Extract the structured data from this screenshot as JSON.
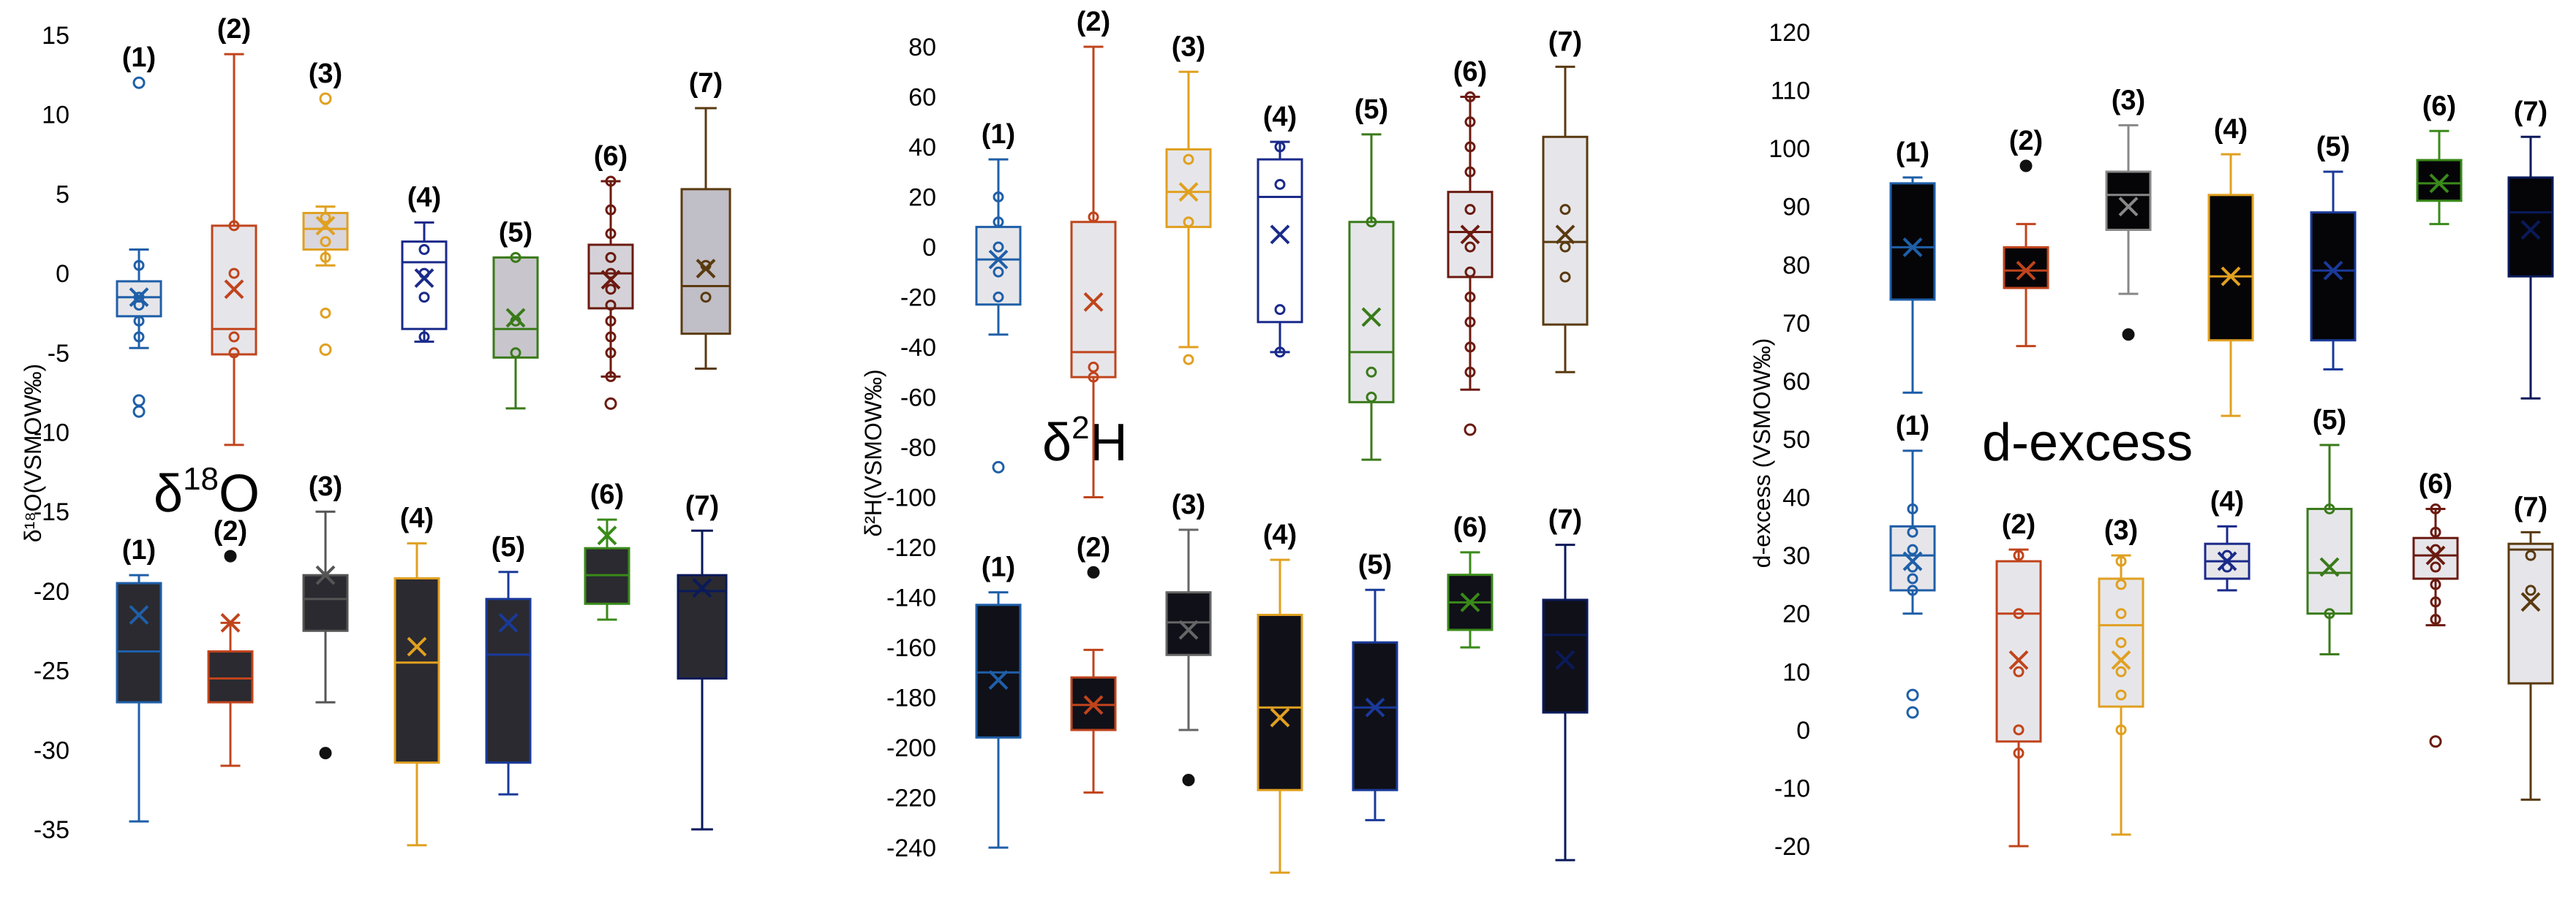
{
  "chart_data": [
    {
      "type": "box",
      "panel": "d18O",
      "title": "δ",
      "title_sup": "18",
      "title_main": "O",
      "ylabel": "δ¹⁸O(VSMOW‰)",
      "ylim": [
        -35,
        15
      ],
      "yticks": [
        15,
        10,
        5,
        0,
        -5,
        -10,
        -15,
        -20,
        -25,
        -30,
        -35
      ],
      "groups": [
        {
          "name": "upper",
          "boxes": [
            {
              "label": "(1)",
              "color": "#1f5fa8",
              "fill": "#e6e6ea",
              "min": -4.7,
              "q1": -2.7,
              "median": -1.5,
              "q3": -0.5,
              "max": 1.5,
              "mean": -1.5,
              "points": [
                -1.5,
                0.5,
                -2.0,
                -3.0,
                -4.0
              ],
              "outliers": [
                12,
                -8,
                -8.7
              ]
            },
            {
              "label": "(2)",
              "color": "#c0441c",
              "fill": "#e6e6ea",
              "min": -10.8,
              "q1": -5.1,
              "median": -3.5,
              "q3": 3.0,
              "max": 13.8,
              "mean": -1.0,
              "points": [
                3.0,
                0,
                -4,
                -5
              ],
              "outliers": []
            },
            {
              "label": "(3)",
              "color": "#e0a020",
              "fill": "#d9d6dd",
              "min": 0.5,
              "q1": 1.5,
              "median": 2.8,
              "q3": 3.8,
              "max": 4.2,
              "mean": 3.0,
              "points": [
                3.5,
                2.0,
                1.0,
                -2.5
              ],
              "outliers": [
                11,
                -4.8
              ]
            },
            {
              "label": "(4)",
              "color": "#1a2a8a",
              "fill": "#ffffff",
              "min": -4.3,
              "q1": -3.5,
              "median": 0.7,
              "q3": 2.0,
              "max": 3.2,
              "mean": -0.3,
              "points": [
                1.5,
                0,
                -1.5,
                -4
              ],
              "outliers": []
            },
            {
              "label": "(5)",
              "color": "#3a7a1a",
              "fill": "#c8c6cc",
              "min": -8.5,
              "q1": -5.3,
              "median": -3.5,
              "q3": 1.0,
              "max": 1.0,
              "mean": -2.8,
              "points": [
                1.0,
                -3.0,
                -5.0
              ],
              "outliers": []
            },
            {
              "label": "(6)",
              "color": "#6b1a10",
              "fill": "#d4d2d8",
              "min": -6.5,
              "q1": -2.2,
              "median": 0.0,
              "q3": 1.8,
              "max": 5.8,
              "mean": -0.4,
              "points": [
                5.8,
                4.0,
                2.5,
                1.0,
                0,
                -1,
                -2,
                -3,
                -4,
                -5,
                -6.5
              ],
              "outliers": [
                -8.2
              ]
            },
            {
              "label": "(7)",
              "color": "#5a3a10",
              "fill": "#c0bec6",
              "min": -6.0,
              "q1": -3.8,
              "median": -0.8,
              "q3": 5.3,
              "max": 10.4,
              "mean": 0.3,
              "points": [
                0.5,
                -1.5
              ],
              "outliers": []
            }
          ]
        },
        {
          "name": "lower",
          "boxes": [
            {
              "label": "(1)",
              "color": "#1f5fa8",
              "fill": "#2a2a30",
              "min": -34.5,
              "q1": -27.0,
              "median": -23.8,
              "q3": -19.5,
              "max": -19.0,
              "mean": -21.5,
              "points": [],
              "outliers": []
            },
            {
              "label": "(2)",
              "color": "#c0441c",
              "fill": "#2a2a30",
              "min": -31.0,
              "q1": -27.0,
              "median": -25.5,
              "q3": -23.8,
              "max": -22.0,
              "mean": -22.0,
              "points": [],
              "outliers": [
                -17.8
              ]
            },
            {
              "label": "(3)",
              "color": "#555555",
              "fill": "#2a2a30",
              "min": -27.0,
              "q1": -22.5,
              "median": -20.5,
              "q3": -19.0,
              "max": -15.0,
              "mean": -19.0,
              "points": [],
              "outliers": [
                -30.2
              ]
            },
            {
              "label": "(4)",
              "color": "#e0a020",
              "fill": "#2a2a30",
              "min": -36.0,
              "q1": -30.8,
              "median": -24.5,
              "q3": -19.2,
              "max": -17.0,
              "mean": -23.5,
              "points": [],
              "outliers": []
            },
            {
              "label": "(5)",
              "color": "#1a3a9a",
              "fill": "#2a2a30",
              "min": -32.8,
              "q1": -30.8,
              "median": -24.0,
              "q3": -20.5,
              "max": -18.8,
              "mean": -22.0,
              "points": [],
              "outliers": []
            },
            {
              "label": "(6)",
              "color": "#3a8a1a",
              "fill": "#2a2a30",
              "min": -21.8,
              "q1": -20.8,
              "median": -19.0,
              "q3": -17.3,
              "max": -15.5,
              "mean": -16.5,
              "points": [],
              "outliers": []
            },
            {
              "label": "(7)",
              "color": "#0a1a5a",
              "fill": "#2a2a30",
              "min": -35.0,
              "q1": -25.5,
              "median": -20.0,
              "q3": -19.0,
              "max": -16.2,
              "mean": -19.8,
              "points": [],
              "outliers": []
            }
          ]
        }
      ]
    },
    {
      "type": "box",
      "panel": "d2H",
      "title": "δ",
      "title_sup": "2",
      "title_main": "H",
      "ylabel": "δ²H(VSMOW‰)",
      "ylim": [
        -240,
        80
      ],
      "yticks": [
        80,
        60,
        40,
        20,
        0,
        -20,
        -40,
        -60,
        -80,
        -100,
        -120,
        -140,
        -160,
        -180,
        -200,
        -220,
        -240
      ],
      "groups": [
        {
          "name": "upper",
          "boxes": [
            {
              "label": "(1)",
              "color": "#1f5fa8",
              "fill": "#e6e6ea",
              "min": -35,
              "q1": -23,
              "median": -5,
              "q3": 8,
              "max": 35,
              "mean": -5,
              "points": [
                20,
                10,
                0,
                -10,
                -20
              ],
              "outliers": [
                -88
              ]
            },
            {
              "label": "(2)",
              "color": "#c0441c",
              "fill": "#e6e6ea",
              "min": -100,
              "q1": -52,
              "median": -42,
              "q3": 10,
              "max": 80,
              "mean": -22,
              "points": [
                12,
                -48,
                -52
              ],
              "outliers": []
            },
            {
              "label": "(3)",
              "color": "#e0a020",
              "fill": "#e6e6ea",
              "min": -40,
              "q1": 8,
              "median": 22,
              "q3": 39,
              "max": 70,
              "mean": 22,
              "points": [
                35,
                10,
                -45
              ],
              "outliers": []
            },
            {
              "label": "(4)",
              "color": "#1a2a8a",
              "fill": "#ffffff",
              "min": -42,
              "q1": -30,
              "median": 20,
              "q3": 35,
              "max": 42,
              "mean": 5,
              "points": [
                40,
                25,
                -25,
                -42
              ],
              "outliers": []
            },
            {
              "label": "(5)",
              "color": "#3a7a1a",
              "fill": "#e6e6ea",
              "min": -85,
              "q1": -62,
              "median": -42,
              "q3": 10,
              "max": 45,
              "mean": -28,
              "points": [
                10,
                -50,
                -60
              ],
              "outliers": []
            },
            {
              "label": "(6)",
              "color": "#6b1a10",
              "fill": "#e6e6ea",
              "min": -57,
              "q1": -12,
              "median": 6,
              "q3": 22,
              "max": 60,
              "mean": 5,
              "points": [
                60,
                50,
                40,
                30,
                15,
                0,
                -10,
                -20,
                -30,
                -40,
                -50
              ],
              "outliers": [
                -73
              ]
            },
            {
              "label": "(7)",
              "color": "#5a3a10",
              "fill": "#e6e6ea",
              "min": -50,
              "q1": -31,
              "median": 2,
              "q3": 44,
              "max": 72,
              "mean": 5,
              "points": [
                15,
                0,
                -12
              ],
              "outliers": []
            }
          ]
        },
        {
          "name": "lower",
          "boxes": [
            {
              "label": "(1)",
              "color": "#1f5fa8",
              "fill": "#101018",
              "min": -240,
              "q1": -196,
              "median": -170,
              "q3": -143,
              "max": -138,
              "mean": -173,
              "points": [],
              "outliers": []
            },
            {
              "label": "(2)",
              "color": "#c0441c",
              "fill": "#101018",
              "min": -218,
              "q1": -193,
              "median": -183,
              "q3": -172,
              "max": -161,
              "mean": -183,
              "points": [],
              "outliers": [
                -130
              ]
            },
            {
              "label": "(3)",
              "color": "#666666",
              "fill": "#101018",
              "min": -193,
              "q1": -163,
              "median": -150,
              "q3": -138,
              "max": -113,
              "mean": -153,
              "points": [],
              "outliers": [
                -213
              ]
            },
            {
              "label": "(4)",
              "color": "#e0a020",
              "fill": "#101018",
              "min": -250,
              "q1": -217,
              "median": -184,
              "q3": -147,
              "max": -125,
              "mean": -188,
              "points": [],
              "outliers": []
            },
            {
              "label": "(5)",
              "color": "#1a3a9a",
              "fill": "#101018",
              "min": -229,
              "q1": -217,
              "median": -184,
              "q3": -158,
              "max": -137,
              "mean": -184,
              "points": [],
              "outliers": []
            },
            {
              "label": "(6)",
              "color": "#3a8a1a",
              "fill": "#101018",
              "min": -160,
              "q1": -153,
              "median": -142,
              "q3": -131,
              "max": -122,
              "mean": -142,
              "points": [],
              "outliers": []
            },
            {
              "label": "(7)",
              "color": "#0a1a5a",
              "fill": "#101018",
              "min": -245,
              "q1": -186,
              "median": -155,
              "q3": -141,
              "max": -119,
              "mean": -165,
              "points": [],
              "outliers": []
            }
          ]
        }
      ]
    },
    {
      "type": "box",
      "panel": "d-excess",
      "title_main": "d-excess",
      "ylabel": "d-excess (VSMOW‰)",
      "ylim": [
        -20,
        120
      ],
      "yticks": [
        120,
        110,
        100,
        90,
        80,
        70,
        60,
        50,
        40,
        30,
        20,
        10,
        0,
        -10,
        -20
      ],
      "groups": [
        {
          "name": "upper",
          "boxes": [
            {
              "label": "(1)",
              "color": "#1f5fa8",
              "fill": "#050508",
              "min": 58,
              "q1": 74,
              "median": 83,
              "q3": 94,
              "max": 95,
              "mean": 83,
              "points": [],
              "outliers": []
            },
            {
              "label": "(2)",
              "color": "#c0441c",
              "fill": "#050508",
              "min": 66,
              "q1": 76,
              "median": 79,
              "q3": 83,
              "max": 87,
              "mean": 79,
              "points": [],
              "outliers": [
                97
              ]
            },
            {
              "label": "(3)",
              "color": "#888888",
              "fill": "#050508",
              "min": 75,
              "q1": 86,
              "median": 92,
              "q3": 96,
              "max": 104,
              "mean": 90,
              "points": [],
              "outliers": [
                68
              ]
            },
            {
              "label": "(4)",
              "color": "#e0a020",
              "fill": "#050508",
              "min": 54,
              "q1": 67,
              "median": 78,
              "q3": 92,
              "max": 99,
              "mean": 78,
              "points": [],
              "outliers": []
            },
            {
              "label": "(5)",
              "color": "#1a3a9a",
              "fill": "#050508",
              "min": 62,
              "q1": 67,
              "median": 79,
              "q3": 89,
              "max": 96,
              "mean": 79,
              "points": [],
              "outliers": []
            },
            {
              "label": "(6)",
              "color": "#3a8a1a",
              "fill": "#050508",
              "min": 87,
              "q1": 91,
              "median": 94,
              "q3": 98,
              "max": 103,
              "mean": 94,
              "points": [],
              "outliers": []
            },
            {
              "label": "(7)",
              "color": "#0a1a5a",
              "fill": "#050508",
              "min": 57,
              "q1": 78,
              "median": 89,
              "q3": 95,
              "max": 102,
              "mean": 86,
              "points": [],
              "outliers": []
            }
          ]
        },
        {
          "name": "lower",
          "boxes": [
            {
              "label": "(1)",
              "color": "#1f5fa8",
              "fill": "#e6e6ea",
              "min": 20,
              "q1": 24,
              "median": 30,
              "q3": 35,
              "max": 48,
              "mean": 29,
              "points": [
                38,
                34,
                31,
                28,
                26,
                24
              ],
              "outliers": [
                6,
                3
              ]
            },
            {
              "label": "(2)",
              "color": "#c0441c",
              "fill": "#e6e6ea",
              "min": -20,
              "q1": -2,
              "median": 20,
              "q3": 29,
              "max": 31,
              "mean": 12,
              "points": [
                30,
                20,
                10,
                0,
                -4
              ],
              "outliers": []
            },
            {
              "label": "(3)",
              "color": "#e0a020",
              "fill": "#e6e6ea",
              "min": -18,
              "q1": 4,
              "median": 18,
              "q3": 26,
              "max": 30,
              "mean": 12,
              "points": [
                29,
                25,
                20,
                15,
                10,
                6,
                0
              ],
              "outliers": []
            },
            {
              "label": "(4)",
              "color": "#1a2a8a",
              "fill": "#e6e6ea",
              "min": 24,
              "q1": 26,
              "median": 29,
              "q3": 32,
              "max": 35,
              "mean": 29,
              "points": [
                30,
                28
              ],
              "outliers": []
            },
            {
              "label": "(5)",
              "color": "#3a7a1a",
              "fill": "#e6e6ea",
              "min": 13,
              "q1": 20,
              "median": 27,
              "q3": 38,
              "max": 49,
              "mean": 28,
              "points": [
                38,
                20
              ],
              "outliers": []
            },
            {
              "label": "(6)",
              "color": "#6b1a10",
              "fill": "#e6e6ea",
              "min": 18,
              "q1": 26,
              "median": 30,
              "q3": 33,
              "max": 38,
              "mean": 30,
              "points": [
                38,
                34,
                31,
                28,
                25,
                22,
                19
              ],
              "outliers": [
                -2
              ]
            },
            {
              "label": "(7)",
              "color": "#5a3a10",
              "fill": "#e6e6ea",
              "min": -12,
              "q1": 8,
              "median": 31,
              "q3": 32,
              "max": 34,
              "mean": 22,
              "points": [
                30,
                24
              ],
              "outliers": []
            }
          ]
        }
      ]
    }
  ]
}
